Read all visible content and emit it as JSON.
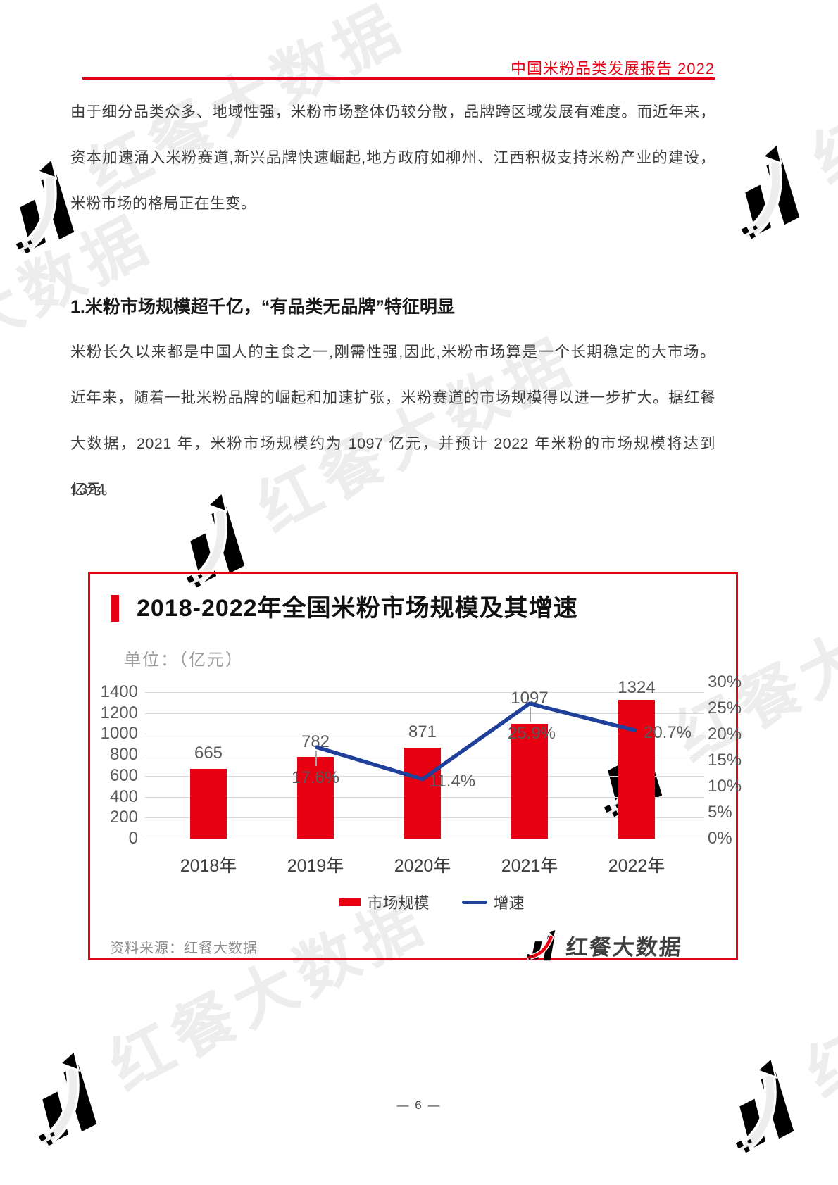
{
  "page": {
    "header_title": "中国米粉品类发展报告 2022",
    "paragraph1_lines": [
      "由于细分品类众多、地域性强，米粉市场整体仍较分散，品牌跨区域发展有难度。而近年来，",
      "资本加速涌入米粉赛道,新兴品牌快速崛起,地方政府如柳州、江西积极支持米粉产业的建设，",
      "米粉市场的格局正在生变。"
    ],
    "section_heading": "1.米粉市场规模超千亿，“有品类无品牌”特征明显",
    "paragraph2_lines": [
      "米粉长久以来都是中国人的主食之一,刚需性强,因此,米粉市场算是一个长期稳定的大市场。",
      "近年来，随着一批米粉品牌的崛起和加速扩张，米粉赛道的市场规模得以进一步扩大。据红餐",
      "大数据，2021 年，米粉市场规模约为 1097 亿元，并预计 2022 年米粉的市场规模将达到 1324",
      "亿元。"
    ],
    "page_number": "— 6 —",
    "watermark_text": "红餐大数据"
  },
  "chart": {
    "source_note": "资料来源：红餐大数据",
    "logo_text": "红餐大数据"
  },
  "chart_data": {
    "type": "bar+line combo",
    "title": "2018-2022年全国米粉市场规模及其增速",
    "unit_label": "单位：（亿元）",
    "categories": [
      "2018年",
      "2019年",
      "2020年",
      "2021年",
      "2022年"
    ],
    "series": [
      {
        "name": "市场规模",
        "type": "bar",
        "axis": "left",
        "color": "#e60012",
        "values": [
          665,
          782,
          871,
          1097,
          1324
        ]
      },
      {
        "name": "增速",
        "type": "line",
        "axis": "right",
        "color": "#1f419b",
        "values": [
          null,
          17.6,
          11.4,
          25.9,
          20.7
        ],
        "point_labels": [
          "",
          "17.6%",
          "11.4%",
          "25.9%",
          "20.7%"
        ]
      }
    ],
    "left_axis": {
      "min": 0,
      "max": 1400,
      "step": 200,
      "ticks": [
        "1400",
        "1200",
        "1000",
        "800",
        "600",
        "400",
        "200",
        "0"
      ]
    },
    "right_axis": {
      "min": 0,
      "max": 30,
      "step": 5,
      "unit": "%",
      "ticks": [
        "30%",
        "25%",
        "20%",
        "15%",
        "10%",
        "5%",
        "0%"
      ]
    },
    "grid": true,
    "legend_position": "bottom",
    "source": "资料来源：红餐大数据"
  }
}
